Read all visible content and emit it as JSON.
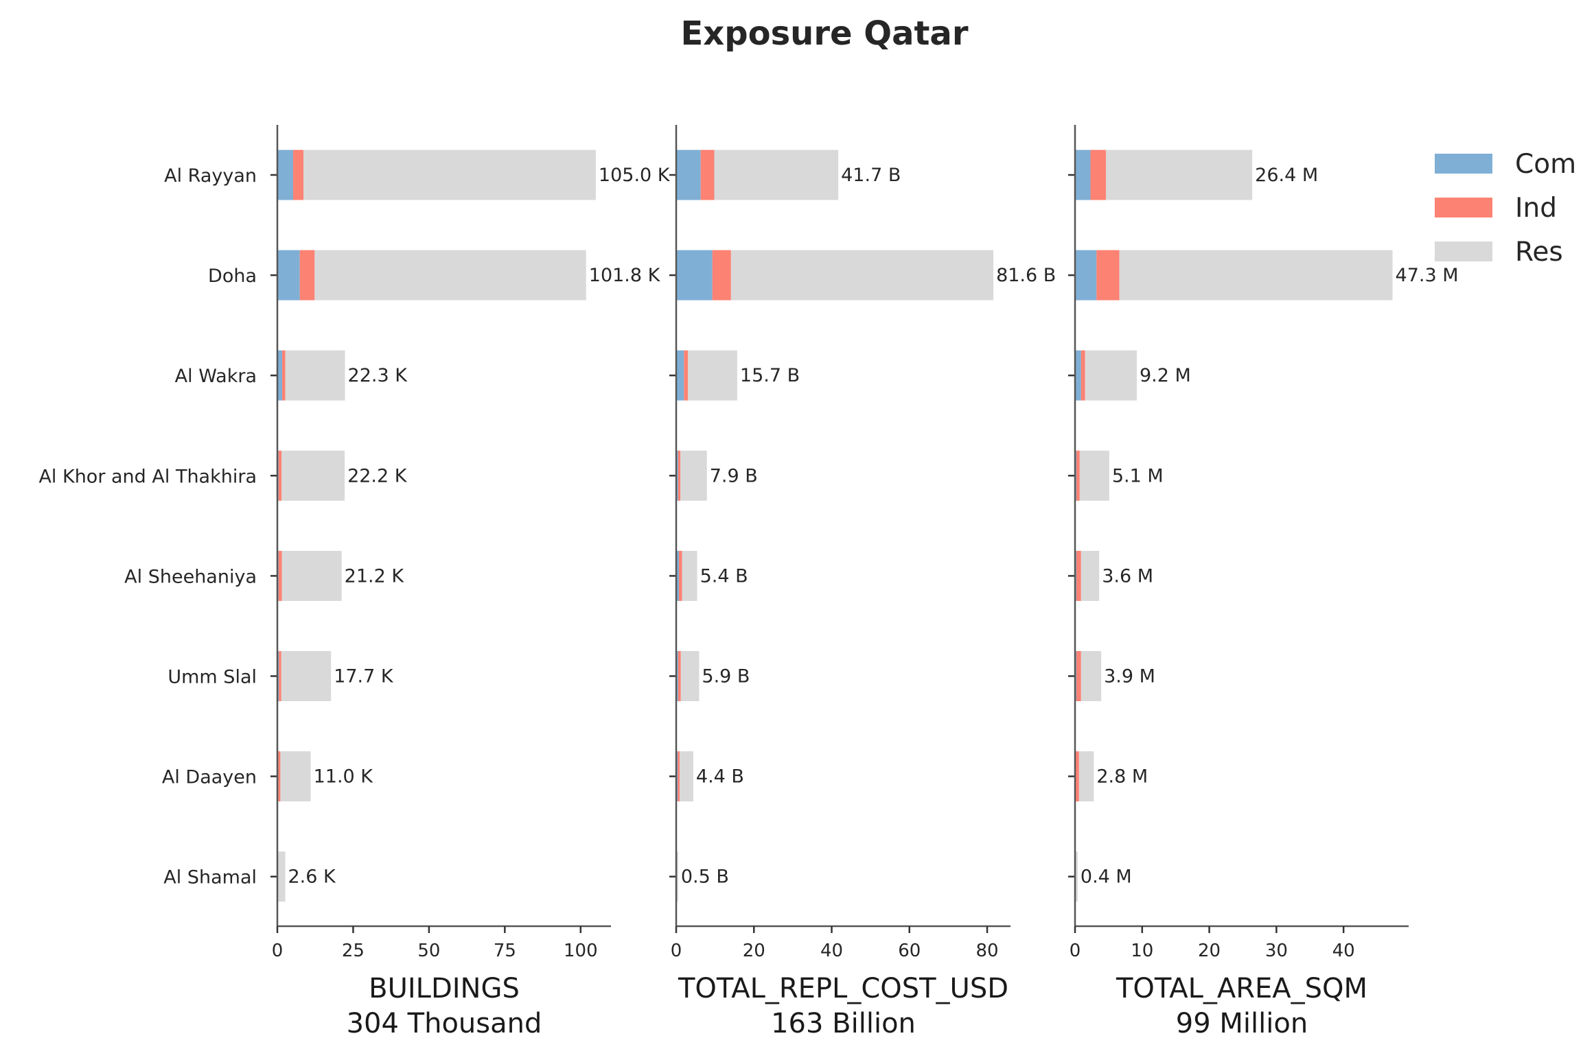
{
  "title": "Exposure Qatar",
  "chart_data": {
    "type": "bar",
    "orientation": "horizontal",
    "stacked": true,
    "title": "Exposure Qatar",
    "categories": [
      "Al Rayyan",
      "Doha",
      "Al Wakra",
      "Al Khor and Al Thakhira",
      "Al Sheehaniya",
      "Umm Slal",
      "Al Daayen",
      "Al Shamal"
    ],
    "legend": {
      "placement": "top-right",
      "entries": [
        {
          "name": "Com",
          "color": "#7fafd5"
        },
        {
          "name": "Ind",
          "color": "#fc8273"
        },
        {
          "name": "Res",
          "color": "#d9d9d9"
        }
      ]
    },
    "panels": [
      {
        "xlabel": "BUILDINGS",
        "sublabel": "304 Thousand",
        "xlim": [
          0,
          110
        ],
        "ticks": [
          0,
          25,
          50,
          75,
          100
        ],
        "series": [
          {
            "name": "Com",
            "values": [
              5.2,
              7.4,
              1.6,
              0.4,
              0.4,
              0.5,
              0.3,
              0.0
            ]
          },
          {
            "name": "Ind",
            "values": [
              3.4,
              4.9,
              1.0,
              1.0,
              1.1,
              0.8,
              0.7,
              0.1
            ]
          },
          {
            "name": "Res",
            "values": [
              96.4,
              89.5,
              19.7,
              20.8,
              19.7,
              16.4,
              10.0,
              2.5
            ]
          }
        ],
        "totals": [
          105.0,
          101.8,
          22.3,
          22.2,
          21.2,
          17.7,
          11.0,
          2.6
        ],
        "labels": [
          "105.0 K",
          "101.8 K",
          "22.3 K",
          "22.2 K",
          "21.2 K",
          "17.7 K",
          "11.0 K",
          "2.6 K"
        ]
      },
      {
        "xlabel": "TOTAL_REPL_COST_USD",
        "sublabel": "163 Billion",
        "xlim": [
          0,
          86
        ],
        "ticks": [
          0,
          20,
          40,
          60,
          80
        ],
        "series": [
          {
            "name": "Com",
            "values": [
              6.3,
              9.3,
              2.0,
              0.5,
              0.7,
              0.5,
              0.4,
              0.05
            ]
          },
          {
            "name": "Ind",
            "values": [
              3.5,
              4.8,
              1.0,
              0.6,
              0.8,
              0.7,
              0.5,
              0.05
            ]
          },
          {
            "name": "Res",
            "values": [
              31.9,
              67.5,
              12.7,
              6.8,
              3.9,
              4.7,
              3.5,
              0.4
            ]
          }
        ],
        "totals": [
          41.7,
          81.6,
          15.7,
          7.9,
          5.4,
          5.9,
          4.4,
          0.5
        ],
        "labels": [
          "41.7 B",
          "81.6 B",
          "15.7 B",
          "7.9 B",
          "5.4 B",
          "5.9 B",
          "4.4 B",
          "0.5 B"
        ]
      },
      {
        "xlabel": "TOTAL_AREA_SQM",
        "sublabel": "99 Million",
        "xlim": [
          0,
          49.7
        ],
        "ticks": [
          0,
          10,
          20,
          30,
          40
        ],
        "series": [
          {
            "name": "Com",
            "values": [
              2.3,
              3.2,
              0.9,
              0.2,
              0.2,
              0.2,
              0.1,
              0.02
            ]
          },
          {
            "name": "Ind",
            "values": [
              2.3,
              3.4,
              0.6,
              0.5,
              0.7,
              0.7,
              0.5,
              0.03
            ]
          },
          {
            "name": "Res",
            "values": [
              21.8,
              40.7,
              7.7,
              4.4,
              2.7,
              3.0,
              2.2,
              0.35
            ]
          }
        ],
        "totals": [
          26.4,
          47.3,
          9.2,
          5.1,
          3.6,
          3.9,
          2.8,
          0.4
        ],
        "labels": [
          "26.4 M",
          "47.3 M",
          "9.2 M",
          "5.1 M",
          "3.6 M",
          "3.9 M",
          "2.8 M",
          "0.4 M"
        ]
      }
    ]
  }
}
